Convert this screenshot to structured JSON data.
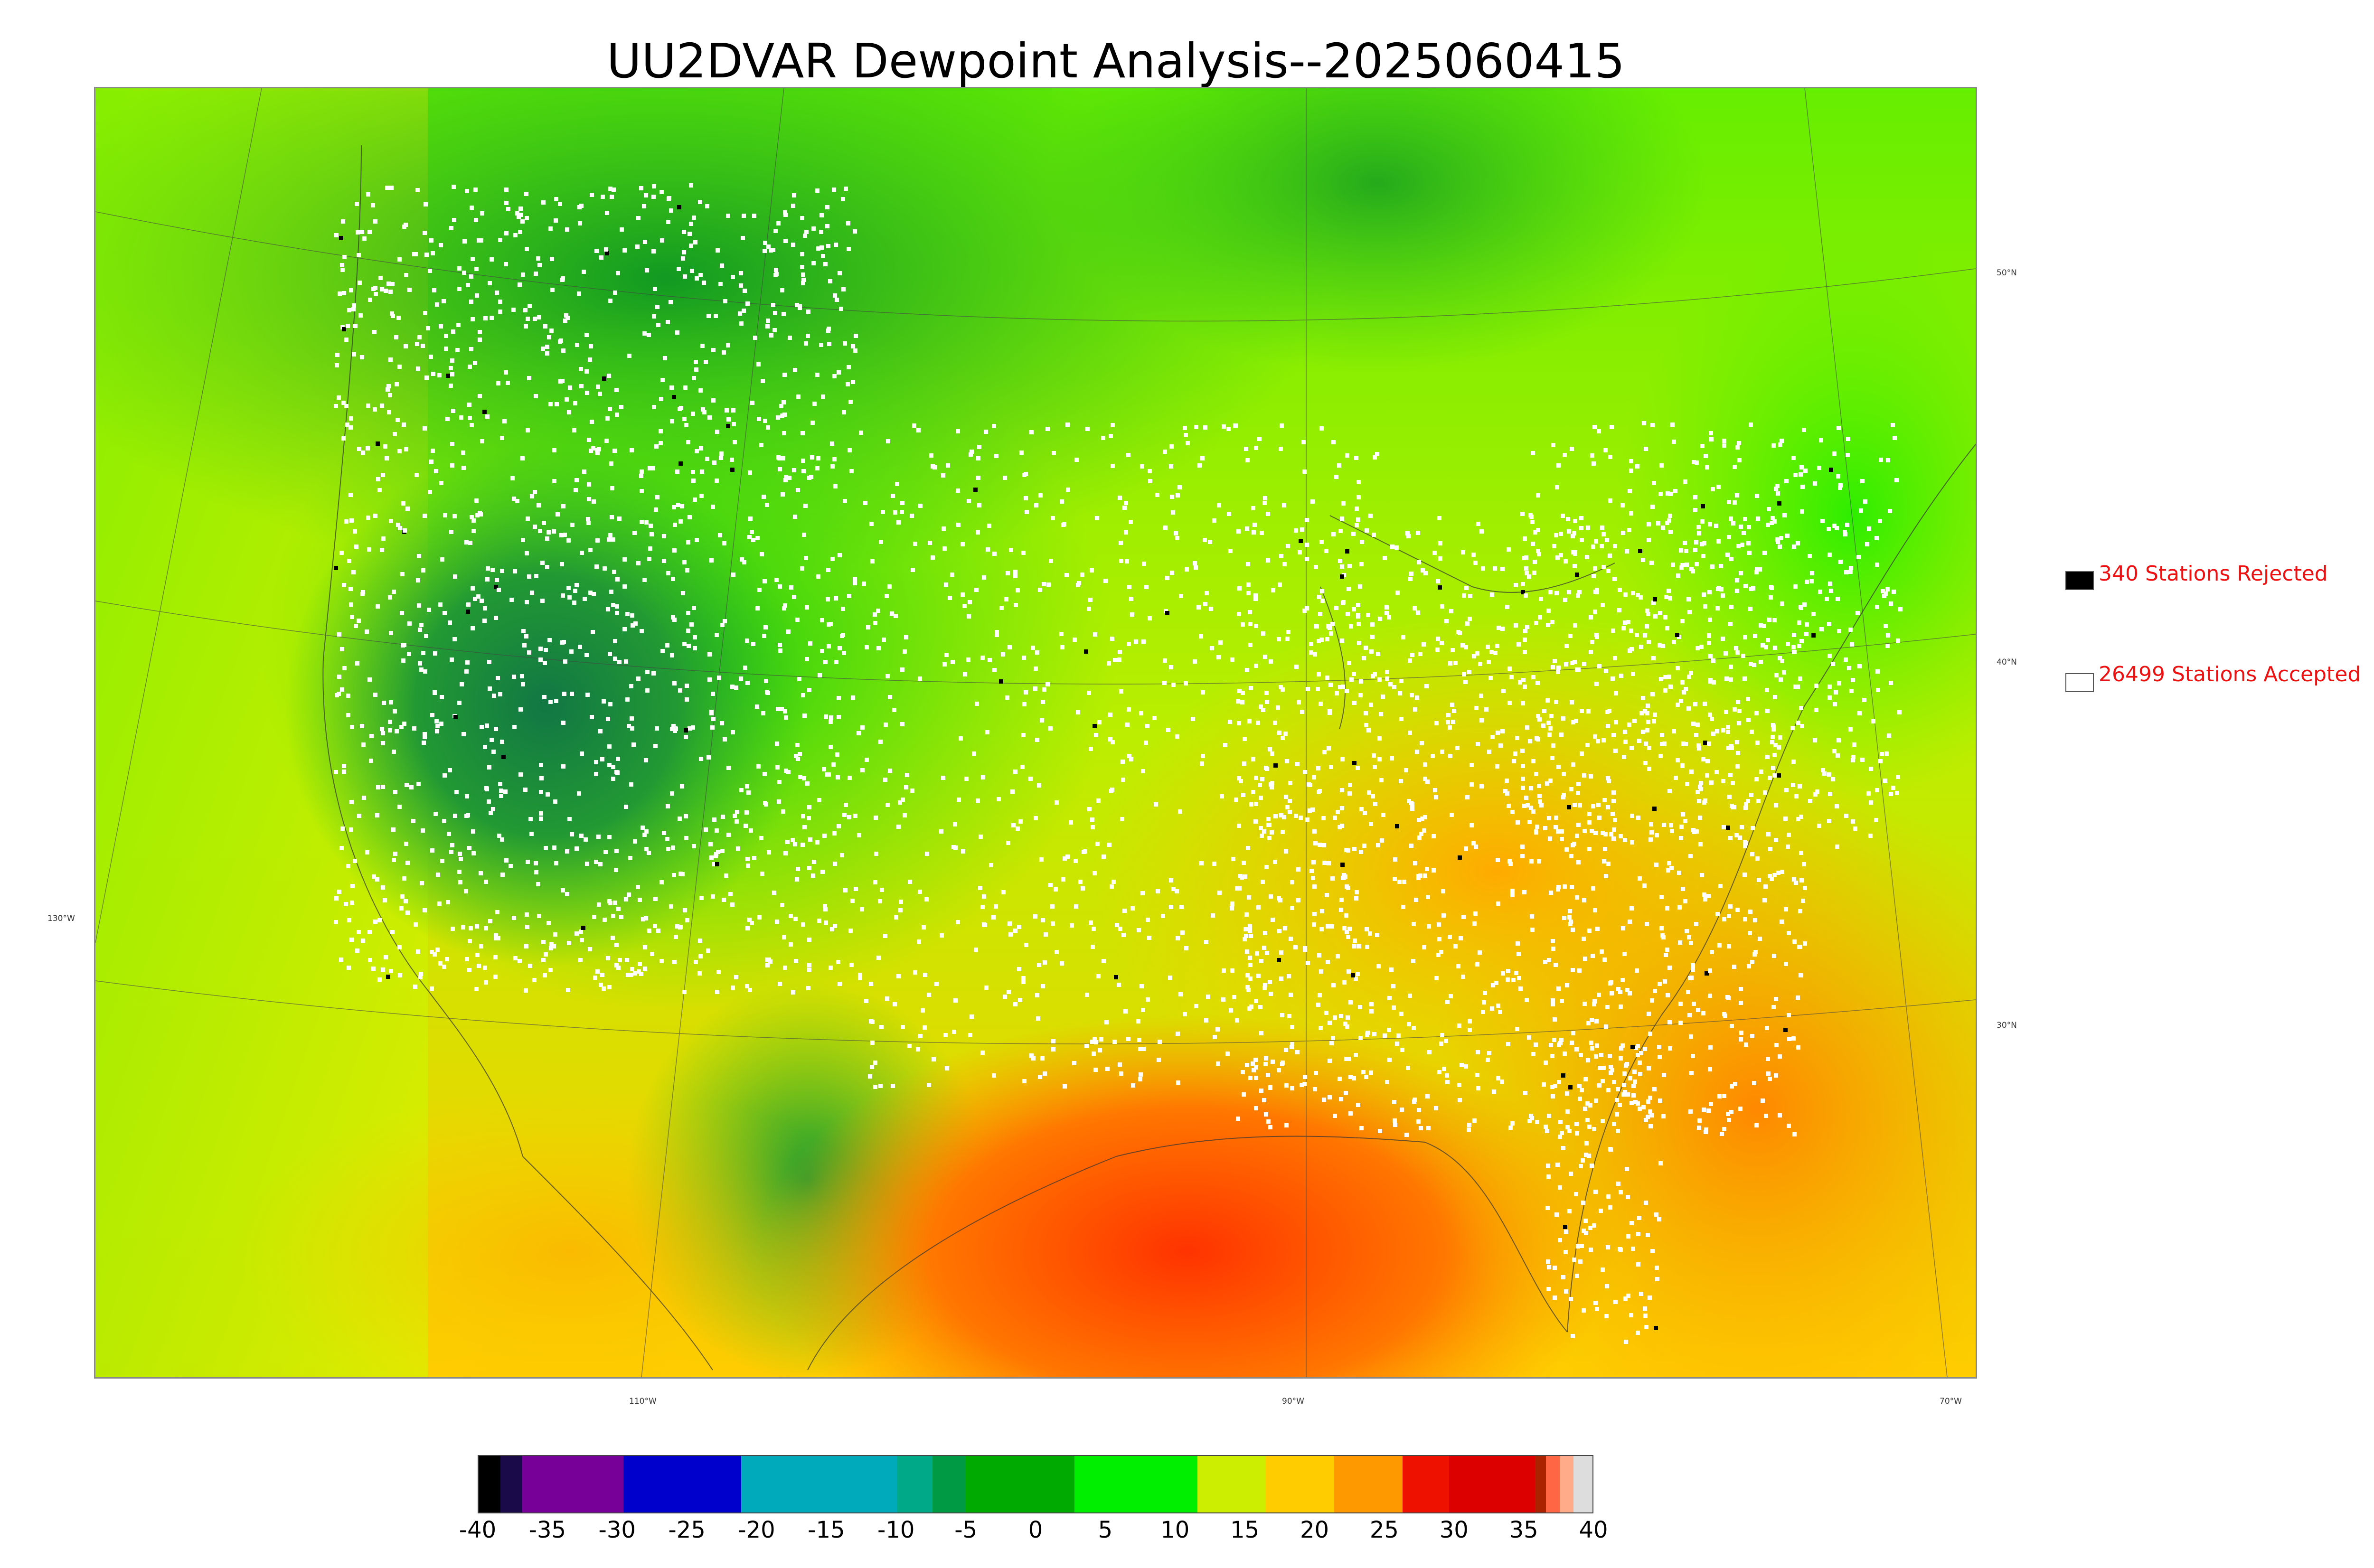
{
  "title": "UU2DVAR Dewpoint Analysis--2025060415",
  "graticule": {
    "lat_labels": [
      "50°N",
      "40°N",
      "30°N"
    ],
    "lon_labels": [
      "130°W",
      "110°W",
      "90°W",
      "70°W"
    ]
  },
  "legend": {
    "rejected": {
      "label": "340 Stations Rejected",
      "color": "#000000"
    },
    "accepted": {
      "label": "26499 Stations Accepted",
      "color": "#ffffff"
    }
  },
  "colorbar": {
    "ticks": [
      "-40",
      "-35",
      "-30",
      "-25",
      "-20",
      "-15",
      "-10",
      "-5",
      "0",
      "5",
      "10",
      "15",
      "20",
      "25",
      "30",
      "35",
      "40"
    ],
    "segments": [
      {
        "color": "#000000",
        "w": 1.6
      },
      {
        "color": "#1a0a4a",
        "w": 1.6
      },
      {
        "color": "#770099",
        "w": 7.4
      },
      {
        "color": "#0000cc",
        "w": 8.6
      },
      {
        "color": "#00aabb",
        "w": 11.4
      },
      {
        "color": "#00aa88",
        "w": 2.6
      },
      {
        "color": "#009944",
        "w": 2.4
      },
      {
        "color": "#00aa00",
        "w": 8.0
      },
      {
        "color": "#00ee00",
        "w": 9.0
      },
      {
        "color": "#ccee00",
        "w": 5.0
      },
      {
        "color": "#ffcc00",
        "w": 5.0
      },
      {
        "color": "#ff9900",
        "w": 5.0
      },
      {
        "color": "#ee1100",
        "w": 3.4
      },
      {
        "color": "#dd0000",
        "w": 6.3
      },
      {
        "color": "#aa2200",
        "w": 0.8
      },
      {
        "color": "#ff6644",
        "w": 1.0
      },
      {
        "color": "#ffaa88",
        "w": 1.0
      },
      {
        "color": "#dddddd",
        "w": 1.4
      }
    ]
  }
}
